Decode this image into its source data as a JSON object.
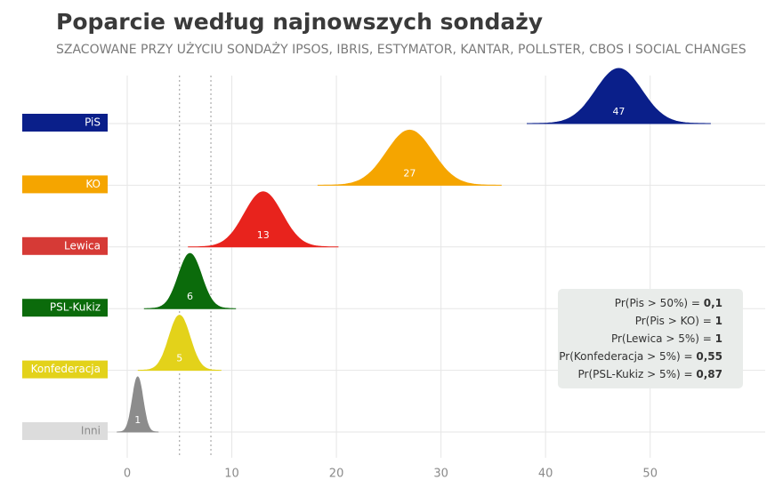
{
  "chart_data": {
    "type": "ridgeline",
    "title": "Poparcie według najnowszych sondaży",
    "subtitle": "SZACOWANE PRZY UŻYCIU SONDAŻY IPSOS, IBRIS, ESTYMATOR, KANTAR, POLLSTER, CBOS I SOCIAL CHANGES",
    "categories": [
      "PiS",
      "KO",
      "Lewica",
      "PSL-Kukiz",
      "Konfederacja",
      "Inni"
    ],
    "values": [
      47,
      27,
      13,
      6,
      5,
      1
    ],
    "sd": [
      2.2,
      2.2,
      1.8,
      1.1,
      1.0,
      0.5
    ],
    "colors": [
      "#0a1f8a",
      "#f5a500",
      "#e8231d",
      "#0b6b0b",
      "#e3d21a",
      "#8c8c8c"
    ],
    "box_colors": [
      "#0a1f8a",
      "#f5a500",
      "#d63a36",
      "#0b6b0b",
      "#e3d21a",
      "#dcdcdc"
    ],
    "text_colors": [
      "#ffffff",
      "#ffffff",
      "#ffffff",
      "#ffffff",
      "#ffffff",
      "#8a8a8a"
    ],
    "xlim": [
      0,
      61
    ],
    "xticks": [
      0,
      10,
      20,
      30,
      40,
      50
    ],
    "threshold_lines": [
      5,
      8
    ],
    "grid": true,
    "annotations": [
      {
        "label": "Pr(Pis > 50%) =",
        "value": "0,1"
      },
      {
        "label": "Pr(Pis > KO) =",
        "value": "1"
      },
      {
        "label": "Pr(Lewica > 5%) =",
        "value": "1"
      },
      {
        "label": "Pr(Konfederacja > 5%) =",
        "value": "0,55"
      },
      {
        "label": "Pr(PSL-Kukiz > 5%) =",
        "value": "0,87"
      }
    ]
  }
}
